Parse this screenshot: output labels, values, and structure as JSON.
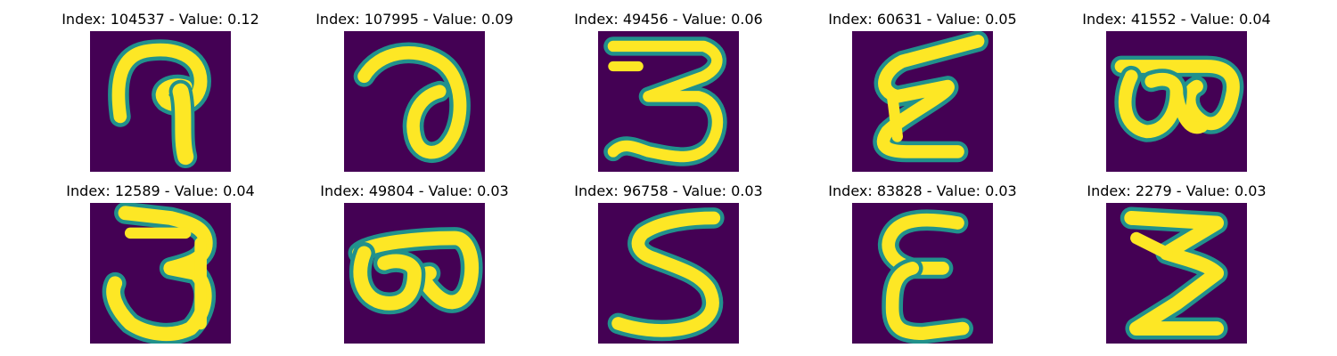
{
  "colors": {
    "background": "#440154",
    "stroke_mid": "#21918c",
    "stroke_high": "#fde725"
  },
  "panels": [
    {
      "title": "Index: 104537 - Value: 0.12"
    },
    {
      "title": "Index: 107995 - Value: 0.09"
    },
    {
      "title": "Index: 49456 - Value: 0.06"
    },
    {
      "title": "Index: 60631 - Value: 0.05"
    },
    {
      "title": "Index: 41552 - Value: 0.04"
    },
    {
      "title": "Index: 12589 - Value: 0.04"
    },
    {
      "title": "Index: 49804 - Value: 0.03"
    },
    {
      "title": "Index: 96758 - Value: 0.03"
    },
    {
      "title": "Index: 83828 - Value: 0.03"
    },
    {
      "title": "Index: 2279 - Value: 0.03"
    }
  ]
}
